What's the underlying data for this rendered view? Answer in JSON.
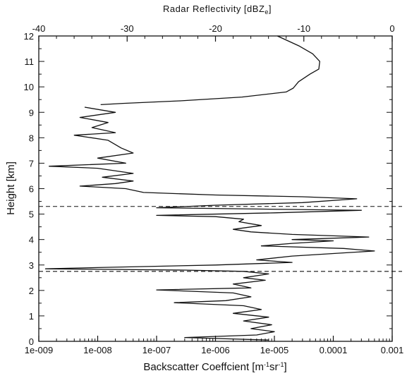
{
  "chart_data": {
    "type": "line",
    "title": "",
    "top_axis": {
      "label": "Radar Reflectivity [dBZ",
      "label_sub": "e",
      "label_end": "]",
      "lim": [
        -40,
        0
      ],
      "ticks": [
        -40,
        -30,
        -20,
        -10,
        0
      ],
      "tick_labels": [
        "-40",
        "-30",
        "-20",
        "-10",
        "0"
      ]
    },
    "x_axis": {
      "label": "Backscatter Coeffcient [m",
      "label_sup1": "-1",
      "label_mid": "sr",
      "label_sup2": "-1",
      "label_end": "]",
      "scale": "log",
      "lim": [
        1e-09,
        0.001
      ],
      "ticks": [
        1e-09,
        1e-08,
        1e-07,
        1e-06,
        1e-05,
        0.0001,
        0.001
      ],
      "tick_labels": [
        "1e-009",
        "1e-008",
        "1e-007",
        "1e-006",
        "1e-005",
        "0.0001",
        "0.001"
      ]
    },
    "y_axis": {
      "label": "Height [km]",
      "lim": [
        0,
        12
      ],
      "ticks": [
        0,
        1,
        2,
        3,
        4,
        5,
        6,
        7,
        8,
        9,
        10,
        11,
        12
      ],
      "tick_labels": [
        "0",
        "1",
        "2",
        "3",
        "4",
        "5",
        "6",
        "7",
        "8",
        "9",
        "10",
        "11",
        "12"
      ]
    },
    "grid": false,
    "reference_lines": [
      {
        "style": "dashed",
        "height_km": 5.3
      },
      {
        "style": "dashed",
        "height_km": 2.75
      }
    ],
    "series": [
      {
        "axis": "top",
        "units": "dBZe",
        "points": [
          [
            -13.0,
            12.0
          ],
          [
            -10.5,
            11.6
          ],
          [
            -9.0,
            11.3
          ],
          [
            -8.2,
            11.0
          ],
          [
            -8.3,
            10.7
          ],
          [
            -9.3,
            10.5
          ],
          [
            -10.6,
            10.2
          ],
          [
            -11.2,
            9.95
          ],
          [
            -12.0,
            9.8
          ],
          [
            -17.0,
            9.6
          ],
          [
            -24.0,
            9.45
          ],
          [
            -30.5,
            9.35
          ],
          [
            -33.0,
            9.3
          ]
        ]
      },
      {
        "axis": "bottom",
        "units": "m^-1 sr^-1",
        "points": [
          [
            6e-09,
            9.2
          ],
          [
            2e-08,
            9.0
          ],
          [
            5e-09,
            8.8
          ],
          [
            1.5e-08,
            8.6
          ],
          [
            8e-09,
            8.4
          ],
          [
            2e-08,
            8.2
          ],
          [
            4e-09,
            8.1
          ],
          [
            1.5e-08,
            7.9
          ],
          [
            2.5e-08,
            7.6
          ],
          [
            4e-08,
            7.4
          ],
          [
            1e-08,
            7.2
          ],
          [
            3e-08,
            7.0
          ],
          [
            1.5e-09,
            6.88
          ],
          [
            1e-08,
            6.8
          ],
          [
            4e-08,
            6.6
          ],
          [
            1.2e-08,
            6.45
          ],
          [
            4e-08,
            6.3
          ],
          [
            2e-08,
            6.2
          ],
          [
            5e-09,
            6.1
          ],
          [
            3e-08,
            6.0
          ],
          [
            6e-08,
            5.85
          ],
          [
            1e-06,
            5.75
          ],
          [
            3e-05,
            5.68
          ],
          [
            0.00025,
            5.6
          ],
          [
            3e-05,
            5.45
          ],
          [
            1e-06,
            5.35
          ],
          [
            1e-07,
            5.25
          ],
          [
            5e-06,
            5.2
          ],
          [
            0.0003,
            5.15
          ],
          [
            1e-05,
            5.05
          ],
          [
            1e-07,
            4.95
          ],
          [
            1e-06,
            4.9
          ],
          [
            3e-06,
            4.8
          ],
          [
            2.5e-06,
            4.7
          ],
          [
            6e-06,
            4.55
          ],
          [
            2e-06,
            4.4
          ],
          [
            4e-06,
            4.3
          ],
          [
            2e-05,
            4.2
          ],
          [
            0.0004,
            4.1
          ],
          [
            2e-05,
            4.0
          ],
          [
            0.0001,
            3.95
          ],
          [
            2e-05,
            3.85
          ],
          [
            6e-06,
            3.75
          ],
          [
            0.00015,
            3.65
          ],
          [
            0.0005,
            3.55
          ],
          [
            0.0001,
            3.45
          ],
          [
            2e-05,
            3.35
          ],
          [
            5e-06,
            3.2
          ],
          [
            2e-05,
            3.1
          ],
          [
            1e-06,
            3.0
          ],
          [
            1e-08,
            2.9
          ],
          [
            1.3e-09,
            2.85
          ],
          [
            3e-07,
            2.8
          ],
          [
            3e-06,
            2.75
          ],
          [
            8e-06,
            2.65
          ],
          [
            3e-06,
            2.5
          ],
          [
            7e-06,
            2.4
          ],
          [
            2e-06,
            2.25
          ],
          [
            4e-06,
            2.1
          ],
          [
            1e-07,
            2.02
          ],
          [
            2e-06,
            1.9
          ],
          [
            4e-06,
            1.75
          ],
          [
            1.5e-06,
            1.6
          ],
          [
            2e-07,
            1.52
          ],
          [
            3e-06,
            1.4
          ],
          [
            6e-06,
            1.25
          ],
          [
            2e-06,
            1.1
          ],
          [
            8e-06,
            0.95
          ],
          [
            3e-06,
            0.8
          ],
          [
            9e-06,
            0.65
          ],
          [
            4e-06,
            0.5
          ],
          [
            1e-05,
            0.38
          ],
          [
            5e-06,
            0.25
          ],
          [
            3e-07,
            0.15
          ],
          [
            8e-06,
            0.05
          ]
        ]
      }
    ]
  }
}
